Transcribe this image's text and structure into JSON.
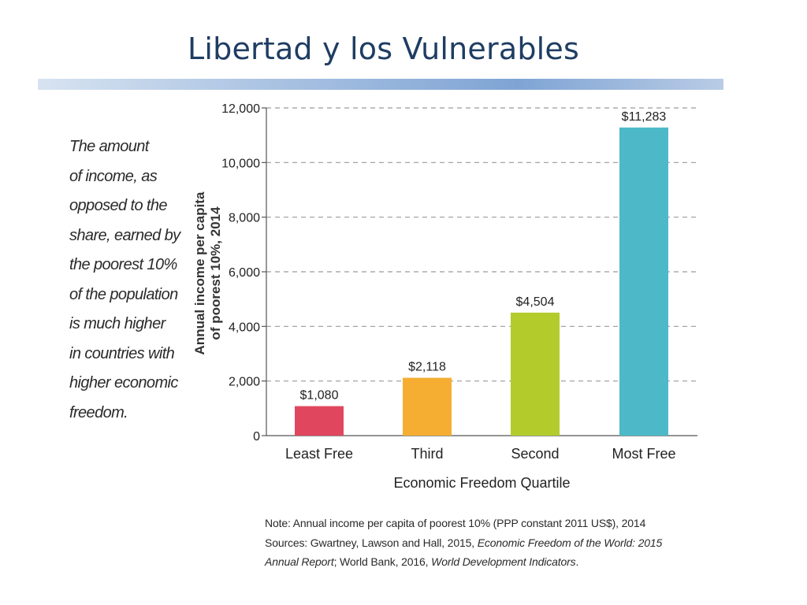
{
  "slide": {
    "title": "Libertad y los Vulnerables"
  },
  "side_text": [
    "The amount",
    "of income, as",
    "opposed to the",
    "share, earned by",
    "the poorest 10%",
    "of the population",
    "is much higher",
    "in countries with",
    "higher economic",
    "freedom."
  ],
  "notes": {
    "note": "Note: Annual income per capita of poorest 10% (PPP constant 2011 US$), 2014",
    "sources_prefix": "Sources: Gwartney, Lawson and Hall, 2015, ",
    "sources_title1": "Economic Freedom of the World: 2015",
    "sources_title1_cont": "Annual Report",
    "sources_middle": "; World Bank, 2016, ",
    "sources_title2": "World Development Indicators",
    "sources_end": "."
  },
  "chart_data": {
    "type": "bar",
    "categories": [
      "Least Free",
      "Third",
      "Second",
      "Most Free"
    ],
    "values": [
      1080,
      2118,
      4504,
      11283
    ],
    "value_labels": [
      "$1,080",
      "$2,118",
      "$4,504",
      "$11,283"
    ],
    "colors": [
      "#e0475f",
      "#f5ae32",
      "#b3cc2c",
      "#4db9c8"
    ],
    "title": "",
    "xlabel": "Economic Freedom Quartile",
    "ylabel_lines": [
      "Annual income per capita",
      "of poorest 10%, 2014"
    ],
    "ylim": [
      0,
      12000
    ],
    "yticks": [
      0,
      2000,
      4000,
      6000,
      8000,
      10000,
      12000
    ],
    "ytick_labels": [
      "0",
      "2,000",
      "4,000",
      "6,000",
      "8,000",
      "10,000",
      "12,000"
    ],
    "grid": "dashed horizontal",
    "legend": "none"
  }
}
